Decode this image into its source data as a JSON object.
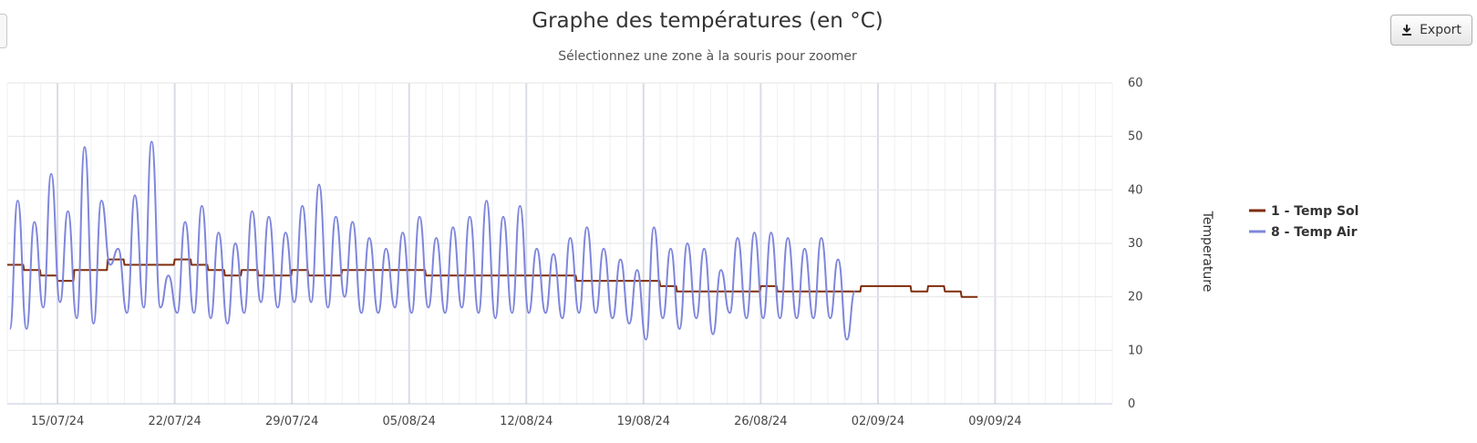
{
  "header": {
    "title": "Graphe des températures (en °C)",
    "subtitle": "Sélectionnez une zone à la souris pour zoomer"
  },
  "toolbar": {
    "export_label": "Export",
    "export_icon": "download-icon"
  },
  "chart_data": {
    "type": "line",
    "title": "Graphe des températures (en °C)",
    "subtitle": "Sélectionnez une zone à la souris pour zoomer",
    "xlabel": "",
    "ylabel": "Temperature",
    "y_axis_side": "right",
    "ylim": [
      0,
      60
    ],
    "y_ticks": [
      0,
      10,
      20,
      30,
      40,
      50,
      60
    ],
    "x_ticks": [
      "15/07/24",
      "22/07/24",
      "29/07/24",
      "05/08/24",
      "12/08/24",
      "19/08/24",
      "26/08/24",
      "02/09/24",
      "09/09/24"
    ],
    "x_start": "2024-07-12",
    "x_end": "2024-09-16",
    "grid": true,
    "legend_position": "right",
    "series": [
      {
        "name": "1 - Temp Sol",
        "color": "#7f2c0a",
        "x": [
          "2024-07-12",
          "2024-07-13",
          "2024-07-14",
          "2024-07-15",
          "2024-07-16",
          "2024-07-17",
          "2024-07-18",
          "2024-07-19",
          "2024-07-20",
          "2024-07-21",
          "2024-07-22",
          "2024-07-23",
          "2024-07-24",
          "2024-07-25",
          "2024-07-26",
          "2024-07-27",
          "2024-07-28",
          "2024-07-29",
          "2024-07-30",
          "2024-07-31",
          "2024-08-01",
          "2024-08-02",
          "2024-08-03",
          "2024-08-04",
          "2024-08-05",
          "2024-08-06",
          "2024-08-07",
          "2024-08-08",
          "2024-08-09",
          "2024-08-10",
          "2024-08-11",
          "2024-08-12",
          "2024-08-13",
          "2024-08-14",
          "2024-08-15",
          "2024-08-16",
          "2024-08-17",
          "2024-08-18",
          "2024-08-19",
          "2024-08-20",
          "2024-08-21",
          "2024-08-22",
          "2024-08-23",
          "2024-08-24",
          "2024-08-25",
          "2024-08-26",
          "2024-08-27",
          "2024-08-28",
          "2024-08-29",
          "2024-08-30",
          "2024-08-31",
          "2024-09-01",
          "2024-09-02",
          "2024-09-03",
          "2024-09-04",
          "2024-09-05",
          "2024-09-06",
          "2024-09-07"
        ],
        "values": [
          26,
          25,
          24,
          23,
          25,
          25,
          27,
          26,
          26,
          26,
          27,
          26,
          25,
          24,
          25,
          24,
          24,
          25,
          24,
          24,
          25,
          25,
          25,
          25,
          25,
          24,
          24,
          24,
          24,
          24,
          24,
          24,
          24,
          24,
          23,
          23,
          23,
          23,
          23,
          22,
          21,
          21,
          21,
          21,
          21,
          22,
          21,
          21,
          21,
          21,
          21,
          22,
          22,
          22,
          21,
          22,
          21,
          20
        ]
      },
      {
        "name": "8 - Temp Air",
        "color": "#7f86dc",
        "x": [
          "2024-07-12",
          "2024-07-13",
          "2024-07-14",
          "2024-07-15",
          "2024-07-16",
          "2024-07-17",
          "2024-07-18",
          "2024-07-19",
          "2024-07-20",
          "2024-07-21",
          "2024-07-22",
          "2024-07-23",
          "2024-07-24",
          "2024-07-25",
          "2024-07-26",
          "2024-07-27",
          "2024-07-28",
          "2024-07-29",
          "2024-07-30",
          "2024-07-31",
          "2024-08-01",
          "2024-08-02",
          "2024-08-03",
          "2024-08-04",
          "2024-08-05",
          "2024-08-06",
          "2024-08-07",
          "2024-08-08",
          "2024-08-09",
          "2024-08-10",
          "2024-08-11",
          "2024-08-12",
          "2024-08-13",
          "2024-08-14",
          "2024-08-15",
          "2024-08-16",
          "2024-08-17",
          "2024-08-18",
          "2024-08-19",
          "2024-08-20",
          "2024-08-21",
          "2024-08-22",
          "2024-08-23",
          "2024-08-24",
          "2024-08-25",
          "2024-08-26",
          "2024-08-27",
          "2024-08-28",
          "2024-08-29",
          "2024-08-30",
          "2024-08-31",
          "2024-09-01",
          "2024-09-02",
          "2024-09-03",
          "2024-09-04",
          "2024-09-05",
          "2024-09-06",
          "2024-09-07"
        ],
        "max": [
          38,
          34,
          43,
          36,
          48,
          38,
          29,
          39,
          49,
          24,
          34,
          37,
          32,
          30,
          36,
          35,
          32,
          37,
          41,
          35,
          34,
          31,
          29,
          32,
          35,
          31,
          33,
          35,
          38,
          35,
          37,
          29,
          28,
          31,
          33,
          29,
          27,
          25,
          33,
          29,
          30,
          29,
          25,
          31,
          32,
          32,
          31,
          29,
          31,
          27,
          21,
          null,
          null,
          null,
          null,
          null,
          null,
          null
        ],
        "min": [
          14,
          14,
          18,
          19,
          16,
          15,
          26,
          17,
          18,
          18,
          17,
          17,
          16,
          15,
          17,
          19,
          18,
          19,
          19,
          18,
          20,
          17,
          17,
          18,
          17,
          18,
          17,
          18,
          17,
          16,
          17,
          17,
          17,
          16,
          17,
          17,
          16,
          15,
          12,
          16,
          14,
          16,
          13,
          17,
          16,
          16,
          16,
          16,
          16,
          16,
          12,
          null,
          null,
          null,
          null,
          null,
          null,
          null
        ]
      }
    ]
  }
}
